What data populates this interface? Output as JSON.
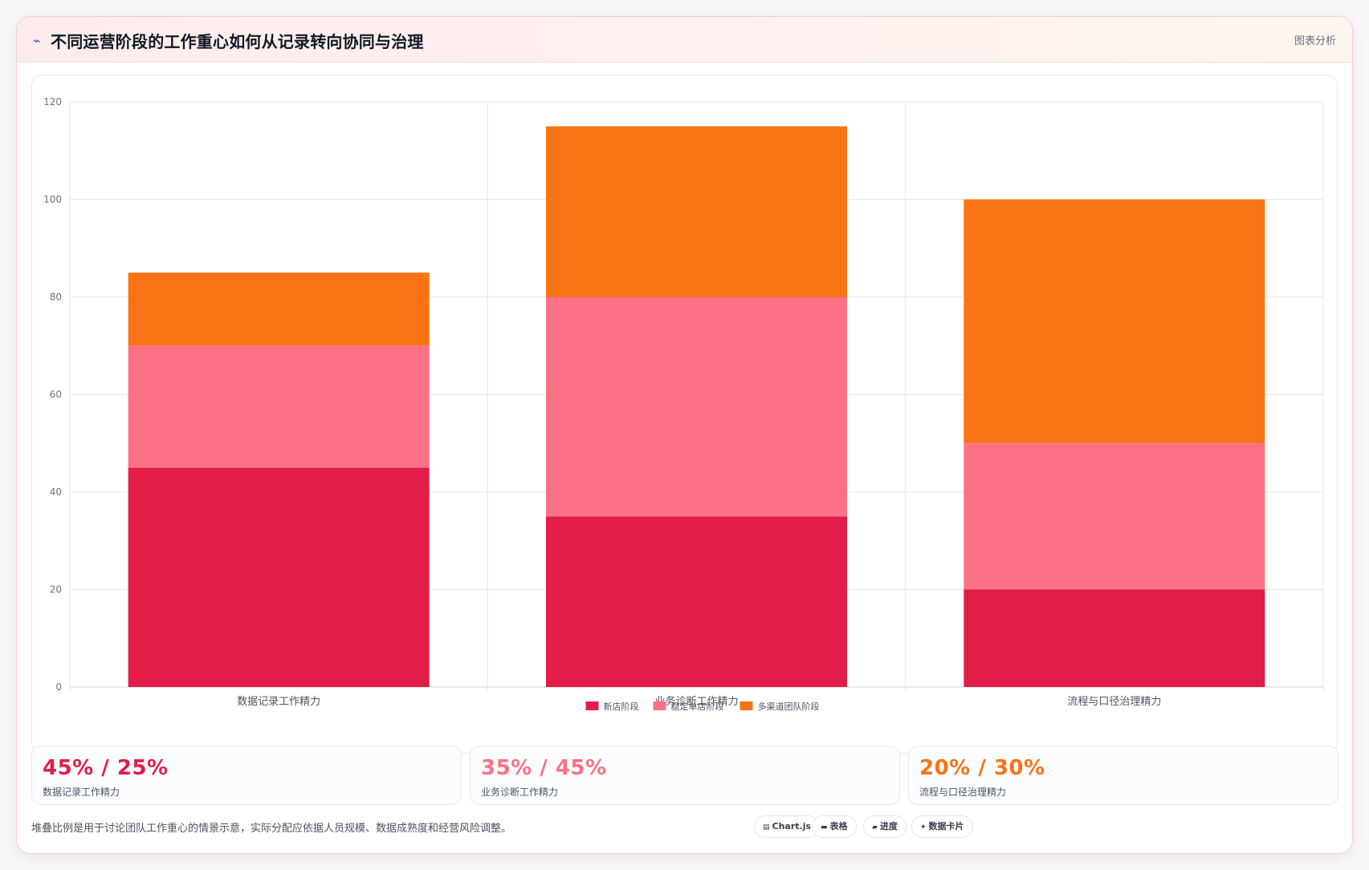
{
  "header": {
    "title_icon": "trend-line-icon",
    "title": "不同运营阶段的工作重心如何从记录转向协同与治理",
    "tag": "图表分析"
  },
  "chart_data": {
    "type": "bar",
    "stacked": true,
    "categories": [
      "数据记录工作精力",
      "业务诊断工作精力",
      "流程与口径治理精力"
    ],
    "series": [
      {
        "name": "新店阶段",
        "values": [
          45,
          35,
          20
        ],
        "color": "#e11d48"
      },
      {
        "name": "稳定单店阶段",
        "values": [
          25,
          45,
          30
        ],
        "color": "#fb7185"
      },
      {
        "name": "多渠道团队阶段",
        "values": [
          15,
          35,
          50
        ],
        "color": "#f97316"
      }
    ],
    "ylim": [
      0,
      120
    ],
    "yticks": [
      0,
      20,
      40,
      60,
      80,
      100,
      120
    ],
    "grid": true,
    "legend": "bottom"
  },
  "stats": [
    {
      "value": "45% / 25%",
      "label": "数据记录工作精力",
      "color": "#e11d48"
    },
    {
      "value": "35% / 45%",
      "label": "业务诊断工作精力",
      "color": "#fb7185"
    },
    {
      "value": "20% / 30%",
      "label": "流程与口径治理精力",
      "color": "#f97316"
    }
  ],
  "footnote": "堆叠比例是用于讨论团队工作重心的情景示意，实际分配应依据人员规模、数据成熟度和经营风险调整。",
  "chips": [
    {
      "icon": "chart-icon",
      "label": "Chart.js"
    },
    {
      "icon": "table-icon",
      "label": "表格"
    },
    {
      "icon": "progress-icon",
      "label": "进度"
    },
    {
      "icon": "sparkle-icon",
      "label": "数据卡片"
    }
  ]
}
